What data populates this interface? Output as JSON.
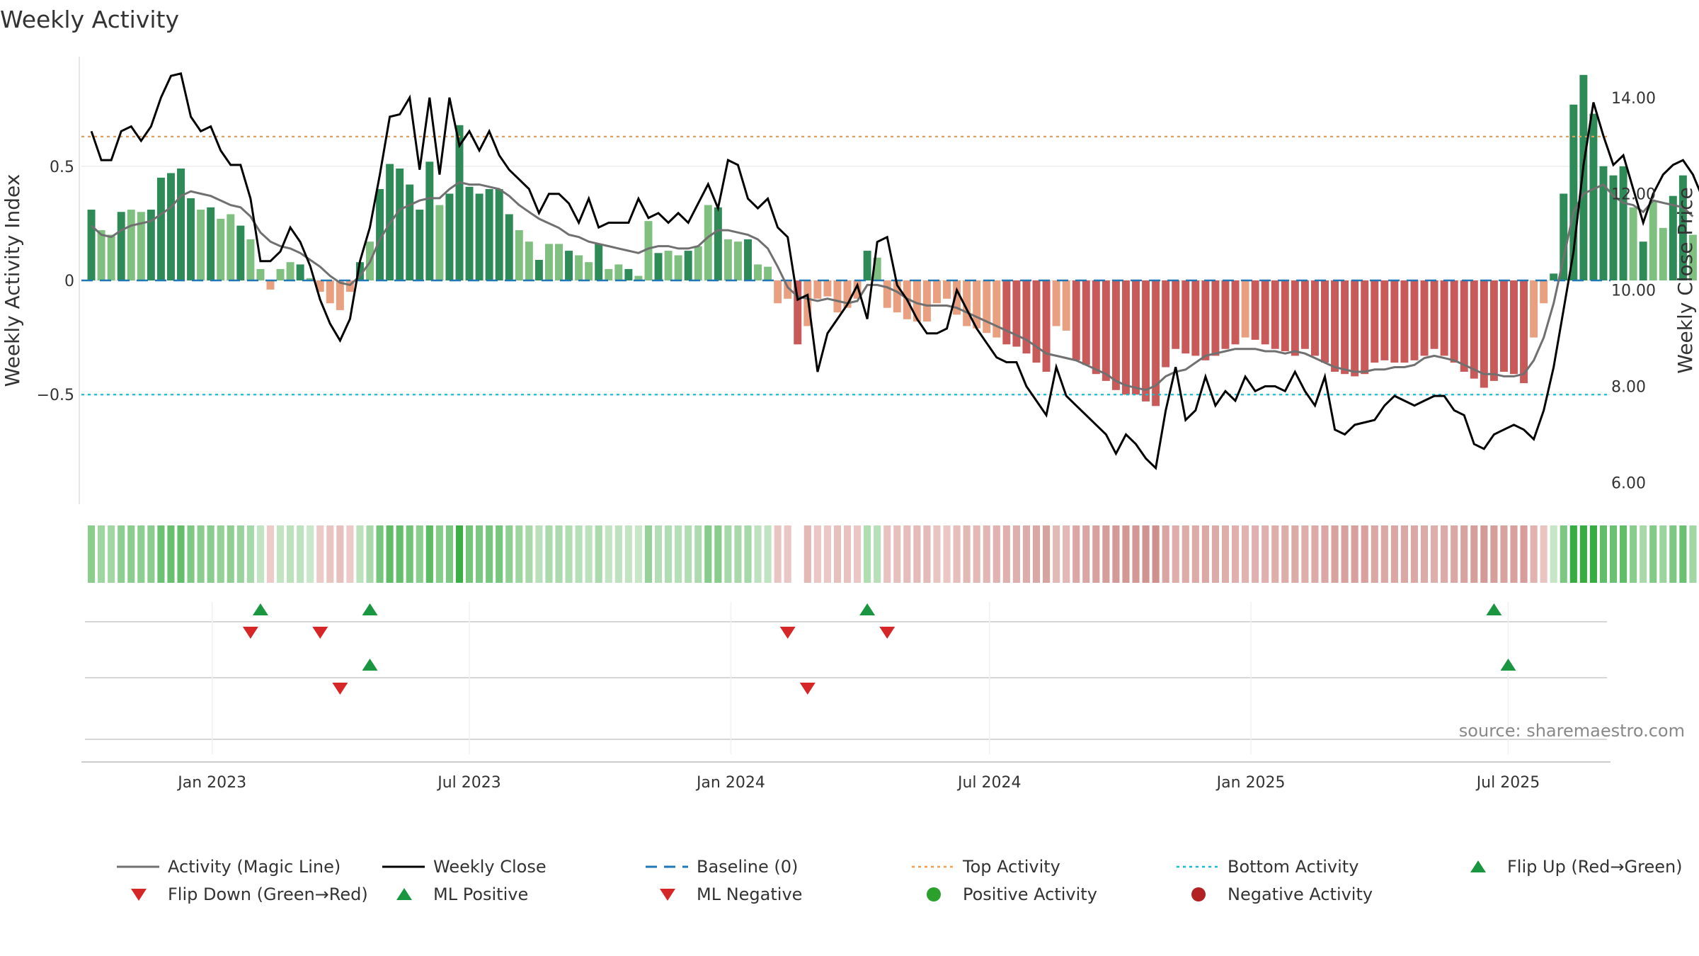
{
  "title": "Weekly Activity",
  "source": "source: sharemaestro.com",
  "chart_data": {
    "type": "bar",
    "title": "Weekly Activity",
    "ylabel": "Weekly Activity Index",
    "ylabel_right": "Weekly Close Price",
    "ylim": [
      -0.98,
      0.98
    ],
    "ylim_right": [
      5.55,
      14.85
    ],
    "yticks": [
      {
        "value": 0.5,
        "label": "0.5"
      },
      {
        "value": 0,
        "label": "0"
      },
      {
        "value": -0.5,
        "label": "−0.5"
      }
    ],
    "yticks_right": [
      {
        "value": 14,
        "label": "14.00"
      },
      {
        "value": 12,
        "label": "12.00"
      },
      {
        "value": 10,
        "label": "10.00"
      },
      {
        "value": 8,
        "label": "8.00"
      },
      {
        "value": 6,
        "label": "6.00"
      }
    ],
    "x_range": [
      "2022-10-01",
      "2025-09-11"
    ],
    "x_start": "2022-10-08",
    "x_step_days": 7,
    "xticks": [
      {
        "date": "2023-01-01",
        "label": "Jan 2023"
      },
      {
        "date": "2023-07-01",
        "label": "Jul 2023"
      },
      {
        "date": "2024-01-01",
        "label": "Jan 2024"
      },
      {
        "date": "2024-07-01",
        "label": "Jul 2024"
      },
      {
        "date": "2025-01-01",
        "label": "Jan 2025"
      },
      {
        "date": "2025-07-01",
        "label": "Jul 2025"
      }
    ],
    "top_activity": 0.63,
    "bottom_activity": -0.5,
    "activity": [
      0.31,
      0.22,
      0.2,
      0.3,
      0.31,
      0.3,
      0.31,
      0.45,
      0.47,
      0.49,
      0.36,
      0.31,
      0.32,
      0.27,
      0.29,
      0.24,
      0.18,
      0.05,
      -0.04,
      0.05,
      0.08,
      0.07,
      0.01,
      -0.05,
      -0.1,
      -0.13,
      -0.05,
      0.08,
      0.17,
      0.4,
      0.51,
      0.49,
      0.42,
      0.31,
      0.52,
      0.33,
      0.38,
      0.68,
      0.41,
      0.38,
      0.4,
      0.4,
      0.29,
      0.22,
      0.17,
      0.09,
      0.16,
      0.16,
      0.13,
      0.11,
      0.08,
      0.16,
      0.05,
      0.07,
      0.05,
      0.02,
      0.26,
      0.12,
      0.13,
      0.11,
      0.13,
      0.15,
      0.33,
      0.32,
      0.18,
      0.17,
      0.18,
      0.07,
      0.06,
      -0.1,
      -0.08,
      -0.28,
      -0.2,
      -0.08,
      -0.07,
      -0.14,
      -0.12,
      -0.08,
      0.13,
      0.1,
      -0.12,
      -0.14,
      -0.17,
      -0.18,
      -0.18,
      -0.1,
      -0.08,
      -0.15,
      -0.2,
      -0.21,
      -0.23,
      -0.25,
      -0.28,
      -0.29,
      -0.32,
      -0.36,
      -0.4,
      -0.2,
      -0.22,
      -0.35,
      -0.37,
      -0.41,
      -0.44,
      -0.48,
      -0.5,
      -0.5,
      -0.53,
      -0.55,
      -0.38,
      -0.3,
      -0.32,
      -0.33,
      -0.35,
      -0.33,
      -0.3,
      -0.28,
      -0.25,
      -0.26,
      -0.28,
      -0.3,
      -0.31,
      -0.33,
      -0.3,
      -0.33,
      -0.36,
      -0.4,
      -0.41,
      -0.42,
      -0.41,
      -0.36,
      -0.35,
      -0.36,
      -0.36,
      -0.35,
      -0.33,
      -0.3,
      -0.33,
      -0.36,
      -0.4,
      -0.43,
      -0.47,
      -0.44,
      -0.4,
      -0.41,
      -0.45,
      -0.25,
      -0.1,
      0.03,
      0.38,
      0.77,
      0.9,
      0.73,
      0.5,
      0.46,
      0.5,
      0.32,
      0.17,
      0.35,
      0.23,
      0.37,
      0.46,
      0.2,
      0.12
    ],
    "magic_line": [
      0.24,
      0.2,
      0.19,
      0.22,
      0.24,
      0.25,
      0.26,
      0.29,
      0.32,
      0.37,
      0.39,
      0.38,
      0.37,
      0.35,
      0.33,
      0.32,
      0.28,
      0.21,
      0.17,
      0.15,
      0.14,
      0.12,
      0.09,
      0.06,
      0.02,
      -0.01,
      -0.02,
      0.02,
      0.08,
      0.18,
      0.25,
      0.31,
      0.33,
      0.35,
      0.36,
      0.36,
      0.4,
      0.43,
      0.42,
      0.42,
      0.41,
      0.4,
      0.37,
      0.33,
      0.3,
      0.27,
      0.25,
      0.23,
      0.2,
      0.19,
      0.17,
      0.16,
      0.15,
      0.14,
      0.13,
      0.12,
      0.14,
      0.15,
      0.15,
      0.14,
      0.14,
      0.15,
      0.19,
      0.22,
      0.22,
      0.21,
      0.2,
      0.18,
      0.14,
      0.06,
      -0.03,
      -0.07,
      -0.08,
      -0.09,
      -0.08,
      -0.09,
      -0.1,
      -0.09,
      -0.02,
      -0.02,
      -0.03,
      -0.05,
      -0.08,
      -0.1,
      -0.11,
      -0.11,
      -0.11,
      -0.12,
      -0.14,
      -0.16,
      -0.18,
      -0.2,
      -0.22,
      -0.24,
      -0.26,
      -0.29,
      -0.32,
      -0.33,
      -0.34,
      -0.35,
      -0.37,
      -0.39,
      -0.41,
      -0.44,
      -0.46,
      -0.47,
      -0.48,
      -0.46,
      -0.42,
      -0.4,
      -0.39,
      -0.36,
      -0.33,
      -0.32,
      -0.31,
      -0.3,
      -0.3,
      -0.3,
      -0.31,
      -0.31,
      -0.32,
      -0.31,
      -0.32,
      -0.34,
      -0.36,
      -0.38,
      -0.39,
      -0.4,
      -0.4,
      -0.39,
      -0.39,
      -0.38,
      -0.38,
      -0.37,
      -0.34,
      -0.33,
      -0.34,
      -0.35,
      -0.37,
      -0.39,
      -0.41,
      -0.41,
      -0.42,
      -0.42,
      -0.41,
      -0.35,
      -0.25,
      -0.1,
      0.1,
      0.3,
      0.38,
      0.4,
      0.42,
      0.37,
      0.34,
      0.33,
      0.3,
      0.35,
      0.34,
      0.33,
      0.32,
      0.28
    ],
    "weekly_close": [
      13.3,
      12.7,
      12.7,
      13.3,
      13.4,
      13.1,
      13.4,
      14.0,
      14.45,
      14.5,
      13.6,
      13.3,
      13.4,
      12.9,
      12.6,
      12.6,
      11.9,
      10.6,
      10.6,
      10.8,
      11.3,
      11.0,
      10.5,
      9.8,
      9.3,
      8.95,
      9.4,
      10.6,
      11.3,
      12.4,
      13.6,
      13.65,
      14.0,
      12.5,
      14.0,
      12.4,
      14.0,
      13.0,
      13.3,
      12.9,
      13.3,
      12.8,
      12.5,
      12.3,
      12.1,
      11.6,
      12.0,
      12.0,
      11.8,
      11.4,
      11.9,
      11.3,
      11.4,
      11.4,
      11.4,
      11.9,
      11.5,
      11.6,
      11.4,
      11.6,
      11.4,
      11.8,
      12.2,
      11.7,
      12.7,
      12.6,
      11.9,
      11.7,
      11.9,
      11.3,
      11.1,
      9.8,
      9.9,
      8.3,
      9.1,
      9.4,
      9.7,
      10.1,
      9.4,
      11.0,
      11.1,
      10.1,
      9.8,
      9.4,
      9.1,
      9.1,
      9.2,
      10.0,
      9.6,
      9.2,
      8.9,
      8.6,
      8.5,
      8.5,
      8.0,
      7.7,
      7.4,
      8.4,
      7.8,
      7.6,
      7.4,
      7.2,
      7.0,
      6.6,
      7.0,
      6.8,
      6.5,
      6.3,
      7.5,
      8.4,
      7.3,
      7.5,
      8.2,
      7.6,
      7.9,
      7.7,
      8.2,
      7.9,
      8.0,
      8.0,
      7.9,
      8.3,
      7.9,
      7.6,
      8.2,
      7.1,
      7.0,
      7.2,
      7.25,
      7.3,
      7.6,
      7.8,
      7.7,
      7.6,
      7.7,
      7.8,
      7.8,
      7.5,
      7.4,
      6.8,
      6.7,
      7.0,
      7.1,
      7.2,
      7.1,
      6.9,
      7.5,
      8.4,
      9.6,
      10.8,
      12.6,
      13.9,
      13.2,
      12.6,
      12.8,
      12.1,
      11.4,
      12.0,
      12.4,
      12.6,
      12.7,
      12.4,
      11.9
    ],
    "heat_gaps": [
      [
        71,
        71
      ]
    ],
    "flip_up": [
      "2023-02-04",
      "2023-04-22",
      "2024-04-06",
      "2025-06-21"
    ],
    "flip_down": [
      "2023-01-28",
      "2023-03-18",
      "2024-02-10",
      "2024-04-20"
    ],
    "ml_positive": [
      "2023-04-22",
      "2025-07-01"
    ],
    "ml_negative": [
      "2023-04-01",
      "2024-02-24"
    ],
    "legend": [
      {
        "label": "Activity (Magic Line)",
        "kind": "line",
        "color": "#707070"
      },
      {
        "label": "Weekly Close",
        "kind": "line",
        "color": "#000000"
      },
      {
        "label": "Baseline (0)",
        "kind": "dashed",
        "color": "#1f77b4"
      },
      {
        "label": "Top Activity",
        "kind": "dotted",
        "color": "#f0a050"
      },
      {
        "label": "Bottom Activity",
        "kind": "dotted",
        "color": "#17becf"
      },
      {
        "label": "Flip Up (Red→Green)",
        "kind": "tri-up",
        "color": "#1a9641"
      },
      {
        "label": "Flip Down (Green→Red)",
        "kind": "tri-down",
        "color": "#d62728"
      },
      {
        "label": "ML Positive",
        "kind": "tri-up",
        "color": "#1a9641"
      },
      {
        "label": "ML Negative",
        "kind": "tri-down",
        "color": "#d62728"
      },
      {
        "label": "Positive Activity",
        "kind": "dot",
        "color": "#2ca02c"
      },
      {
        "label": "Negative Activity",
        "kind": "dot",
        "color": "#b22222"
      }
    ],
    "grid": true,
    "legend_position": "bottom"
  }
}
